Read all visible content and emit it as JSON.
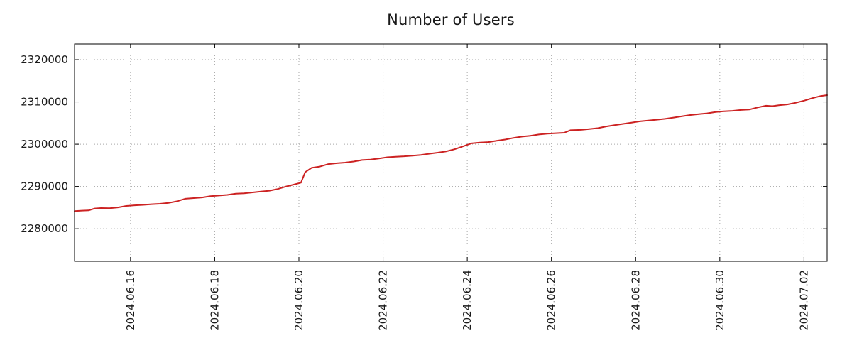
{
  "chart": {
    "title": "Number of Users",
    "colors": {
      "line": "#cc2222",
      "grid": "#a6a6a6",
      "axis": "#000000",
      "text": "#1a1a1a",
      "background": "#ffffff"
    }
  },
  "chart_data": {
    "type": "line",
    "title": "Number of Users",
    "xlabel": "",
    "ylabel": "",
    "legend": "none",
    "grid": "dotted",
    "x_base_date": "2024-06-14",
    "x_unit": "days since 2024-06-14",
    "xlim": [
      0.67,
      18.55
    ],
    "ylim": [
      2272300,
      2323700
    ],
    "x_ticks": [
      {
        "pos": 2,
        "label": "2024.06.16"
      },
      {
        "pos": 4,
        "label": "2024.06.18"
      },
      {
        "pos": 6,
        "label": "2024.06.20"
      },
      {
        "pos": 8,
        "label": "2024.06.22"
      },
      {
        "pos": 10,
        "label": "2024.06.24"
      },
      {
        "pos": 12,
        "label": "2024.06.26"
      },
      {
        "pos": 14,
        "label": "2024.06.28"
      },
      {
        "pos": 16,
        "label": "2024.06.30"
      },
      {
        "pos": 18,
        "label": "2024.07.02"
      }
    ],
    "y_ticks": [
      {
        "pos": 2280000,
        "label": "2280000"
      },
      {
        "pos": 2290000,
        "label": "2290000"
      },
      {
        "pos": 2300000,
        "label": "2300000"
      },
      {
        "pos": 2310000,
        "label": "2310000"
      },
      {
        "pos": 2320000,
        "label": "2320000"
      }
    ],
    "series": [
      {
        "name": "Number of Users",
        "color": "#cc2222",
        "points": [
          [
            0.67,
            2284200
          ],
          [
            0.85,
            2284300
          ],
          [
            1.0,
            2284350
          ],
          [
            1.15,
            2284800
          ],
          [
            1.3,
            2284900
          ],
          [
            1.5,
            2284850
          ],
          [
            1.7,
            2285050
          ],
          [
            1.9,
            2285400
          ],
          [
            2.1,
            2285550
          ],
          [
            2.3,
            2285650
          ],
          [
            2.5,
            2285800
          ],
          [
            2.7,
            2285900
          ],
          [
            2.9,
            2286100
          ],
          [
            3.1,
            2286500
          ],
          [
            3.3,
            2287100
          ],
          [
            3.5,
            2287250
          ],
          [
            3.7,
            2287400
          ],
          [
            3.9,
            2287700
          ],
          [
            4.1,
            2287850
          ],
          [
            4.3,
            2288000
          ],
          [
            4.5,
            2288300
          ],
          [
            4.7,
            2288400
          ],
          [
            4.9,
            2288600
          ],
          [
            5.1,
            2288800
          ],
          [
            5.3,
            2289000
          ],
          [
            5.5,
            2289400
          ],
          [
            5.7,
            2290000
          ],
          [
            5.9,
            2290500
          ],
          [
            6.05,
            2290900
          ],
          [
            6.15,
            2293400
          ],
          [
            6.3,
            2294400
          ],
          [
            6.5,
            2294700
          ],
          [
            6.7,
            2295300
          ],
          [
            6.9,
            2295500
          ],
          [
            7.1,
            2295650
          ],
          [
            7.3,
            2295900
          ],
          [
            7.5,
            2296250
          ],
          [
            7.7,
            2296350
          ],
          [
            7.9,
            2296600
          ],
          [
            8.1,
            2296900
          ],
          [
            8.3,
            2297050
          ],
          [
            8.5,
            2297150
          ],
          [
            8.7,
            2297300
          ],
          [
            8.9,
            2297450
          ],
          [
            9.1,
            2297750
          ],
          [
            9.3,
            2298000
          ],
          [
            9.5,
            2298300
          ],
          [
            9.7,
            2298800
          ],
          [
            9.9,
            2299500
          ],
          [
            10.1,
            2300200
          ],
          [
            10.3,
            2300400
          ],
          [
            10.5,
            2300500
          ],
          [
            10.7,
            2300800
          ],
          [
            10.9,
            2301100
          ],
          [
            11.1,
            2301500
          ],
          [
            11.3,
            2301800
          ],
          [
            11.5,
            2302000
          ],
          [
            11.7,
            2302300
          ],
          [
            11.9,
            2302500
          ],
          [
            12.1,
            2302600
          ],
          [
            12.3,
            2302700
          ],
          [
            12.45,
            2303300
          ],
          [
            12.7,
            2303400
          ],
          [
            12.9,
            2303600
          ],
          [
            13.1,
            2303800
          ],
          [
            13.3,
            2304200
          ],
          [
            13.5,
            2304500
          ],
          [
            13.7,
            2304800
          ],
          [
            13.9,
            2305100
          ],
          [
            14.1,
            2305400
          ],
          [
            14.3,
            2305600
          ],
          [
            14.5,
            2305800
          ],
          [
            14.7,
            2306000
          ],
          [
            14.9,
            2306300
          ],
          [
            15.1,
            2306600
          ],
          [
            15.3,
            2306900
          ],
          [
            15.5,
            2307100
          ],
          [
            15.7,
            2307300
          ],
          [
            15.9,
            2307600
          ],
          [
            16.1,
            2307800
          ],
          [
            16.3,
            2307900
          ],
          [
            16.5,
            2308100
          ],
          [
            16.7,
            2308200
          ],
          [
            16.9,
            2308700
          ],
          [
            17.1,
            2309100
          ],
          [
            17.25,
            2309000
          ],
          [
            17.4,
            2309200
          ],
          [
            17.6,
            2309400
          ],
          [
            17.8,
            2309800
          ],
          [
            18.0,
            2310300
          ],
          [
            18.2,
            2310900
          ],
          [
            18.4,
            2311400
          ],
          [
            18.55,
            2311600
          ]
        ]
      }
    ]
  }
}
